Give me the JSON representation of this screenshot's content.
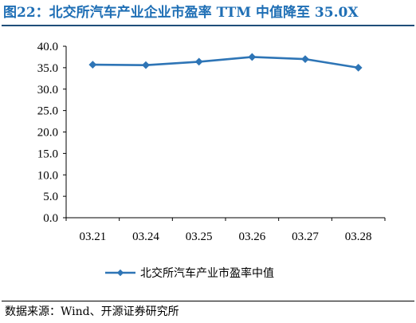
{
  "title": "图22：北交所汽车产业企业市盈率 TTM 中值降至 35.0X",
  "source": "数据来源：Wind、开源证券研究所",
  "colors": {
    "accent": "#1F6FB5",
    "series": "#2E75B6",
    "axis": "#000000"
  },
  "chart_data": {
    "type": "line",
    "categories": [
      "03.21",
      "03.24",
      "03.25",
      "03.26",
      "03.27",
      "03.28"
    ],
    "series": [
      {
        "name": "北交所汽车产业市盈率中值",
        "values": [
          35.7,
          35.6,
          36.4,
          37.5,
          37.0,
          35.0
        ]
      }
    ],
    "yticks": [
      "0.0",
      "5.0",
      "10.0",
      "15.0",
      "20.0",
      "25.0",
      "30.0",
      "35.0",
      "40.0"
    ],
    "ylim": [
      0,
      40
    ],
    "grid": false,
    "legend": "bottom-center",
    "marker": "diamond"
  }
}
